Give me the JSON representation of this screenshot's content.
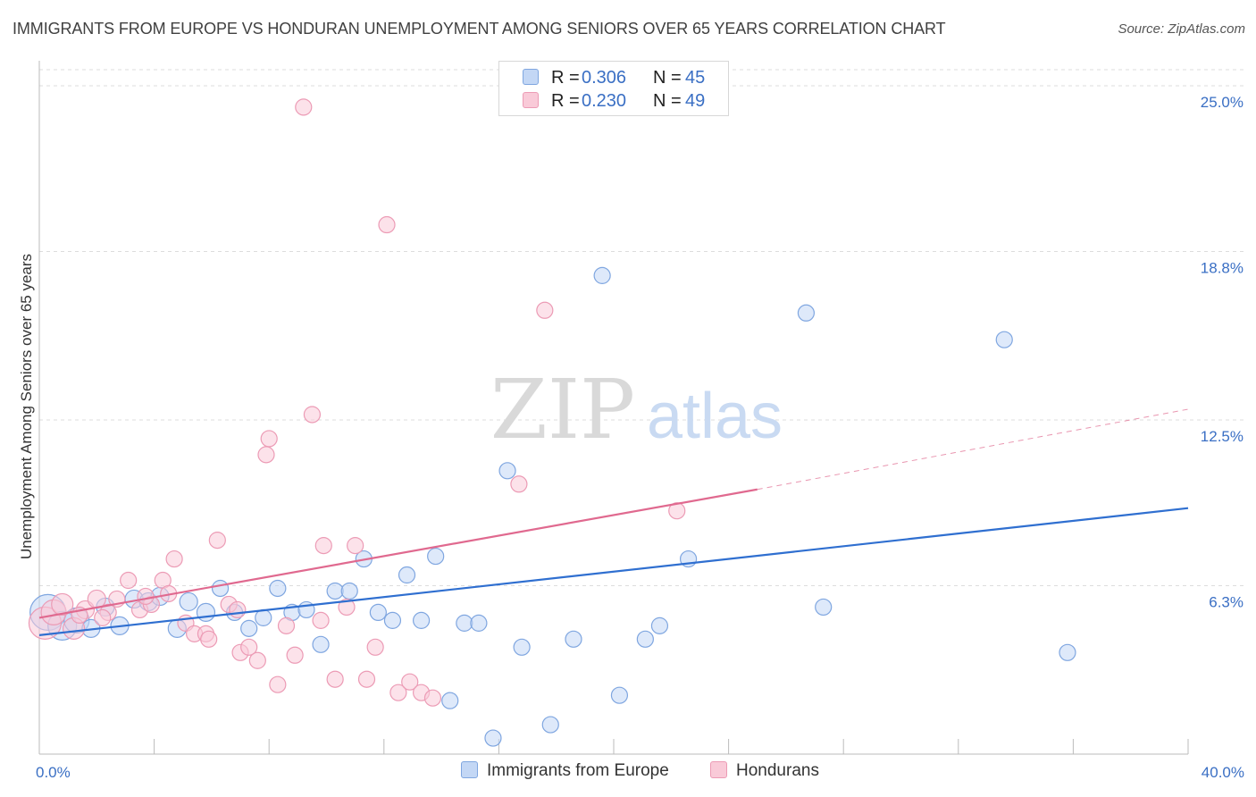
{
  "header": {
    "title": "IMMIGRANTS FROM EUROPE VS HONDURAN UNEMPLOYMENT AMONG SENIORS OVER 65 YEARS CORRELATION CHART",
    "source": "Source: ZipAtlas.com"
  },
  "watermark": {
    "zip": "ZIP",
    "atlas": "atlas"
  },
  "legend": {
    "blue": {
      "r_label": "R =",
      "r_value": "0.306",
      "n_label": "N =",
      "n_value": "45"
    },
    "pink": {
      "r_label": "R =",
      "r_value": "0.230",
      "n_label": "N =",
      "n_value": "49"
    }
  },
  "bottom_legend": {
    "blue_label": "Immigrants from Europe",
    "pink_label": "Hondurans"
  },
  "colors": {
    "blue_fill": "#c3d7f5",
    "blue_stroke": "#7fa6e0",
    "blue_line": "#2f6fd0",
    "pink_fill": "#f9cad8",
    "pink_stroke": "#ec9bb5",
    "pink_line": "#e0698f",
    "axis_text": "#3a6fc4",
    "grid": "#dddddd"
  },
  "chart_data": {
    "type": "scatter",
    "title": "IMMIGRANTS FROM EUROPE VS HONDURAN UNEMPLOYMENT AMONG SENIORS OVER 65 YEARS CORRELATION CHART",
    "xlabel": "",
    "ylabel": "Unemployment Among Seniors over 65 years",
    "xlim": [
      0,
      40
    ],
    "ylim": [
      0,
      25.8
    ],
    "x_tick_labels": [
      {
        "value": 0,
        "label": "0.0%"
      },
      {
        "value": 40,
        "label": "40.0%"
      }
    ],
    "y_tick_labels": [
      {
        "value": 6.3,
        "label": "6.3%"
      },
      {
        "value": 12.5,
        "label": "12.5%"
      },
      {
        "value": 18.8,
        "label": "18.8%"
      },
      {
        "value": 25.0,
        "label": "25.0%"
      }
    ],
    "x_minor_ticks": [
      0,
      4,
      8,
      12,
      16,
      20,
      24,
      28,
      32,
      36,
      40
    ],
    "grid": true,
    "series": [
      {
        "name": "Immigrants from Europe",
        "color": "blue",
        "R": 0.306,
        "N": 45,
        "trend": {
          "x0": 0,
          "y0": 4.45,
          "x1": 40,
          "y1": 9.2,
          "dashed_from": null
        },
        "points": [
          [
            0.3,
            5.3,
            20
          ],
          [
            0.8,
            4.8,
            16
          ],
          [
            1.3,
            5.0,
            14
          ],
          [
            2.8,
            4.8,
            10
          ],
          [
            2.3,
            5.5,
            10
          ],
          [
            3.3,
            5.8,
            10
          ],
          [
            3.8,
            5.7,
            10
          ],
          [
            4.2,
            5.9,
            10
          ],
          [
            4.8,
            4.7,
            10
          ],
          [
            5.2,
            5.7,
            10
          ],
          [
            5.8,
            5.3,
            10
          ],
          [
            6.3,
            6.2,
            9
          ],
          [
            6.8,
            5.3,
            9
          ],
          [
            7.3,
            4.7,
            9
          ],
          [
            7.8,
            5.1,
            9
          ],
          [
            8.3,
            6.2,
            9
          ],
          [
            8.8,
            5.3,
            9
          ],
          [
            9.3,
            5.4,
            9
          ],
          [
            9.8,
            4.1,
            9
          ],
          [
            10.3,
            6.1,
            9
          ],
          [
            10.8,
            6.1,
            9
          ],
          [
            11.3,
            7.3,
            9
          ],
          [
            11.8,
            5.3,
            9
          ],
          [
            12.3,
            5.0,
            9
          ],
          [
            12.8,
            6.7,
            9
          ],
          [
            13.3,
            5.0,
            9
          ],
          [
            13.8,
            7.4,
            9
          ],
          [
            14.3,
            2.0,
            9
          ],
          [
            14.8,
            4.9,
            9
          ],
          [
            15.3,
            4.9,
            9
          ],
          [
            15.8,
            0.6,
            9
          ],
          [
            16.3,
            10.6,
            9
          ],
          [
            16.8,
            4.0,
            9
          ],
          [
            17.8,
            1.1,
            9
          ],
          [
            18.6,
            4.3,
            9
          ],
          [
            19.6,
            17.9,
            9
          ],
          [
            20.2,
            2.2,
            9
          ],
          [
            21.1,
            4.3,
            9
          ],
          [
            21.6,
            4.8,
            9
          ],
          [
            22.6,
            7.3,
            9
          ],
          [
            26.7,
            16.5,
            9
          ],
          [
            27.3,
            5.5,
            9
          ],
          [
            33.6,
            15.5,
            9
          ],
          [
            35.8,
            3.8,
            9
          ],
          [
            1.8,
            4.7,
            10
          ]
        ]
      },
      {
        "name": "Hondurans",
        "color": "pink",
        "R": 0.23,
        "N": 49,
        "trend": {
          "x0": 0,
          "y0": 5.1,
          "x1": 25.0,
          "y1": 9.9,
          "dash_x1": 40,
          "dash_y1": 12.9
        },
        "points": [
          [
            0.2,
            4.9,
            18
          ],
          [
            0.5,
            5.3,
            14
          ],
          [
            0.8,
            5.6,
            12
          ],
          [
            1.2,
            4.7,
            12
          ],
          [
            1.6,
            5.4,
            10
          ],
          [
            2.0,
            5.8,
            10
          ],
          [
            2.4,
            5.3,
            9
          ],
          [
            2.7,
            5.8,
            9
          ],
          [
            3.1,
            6.5,
            9
          ],
          [
            3.5,
            5.4,
            9
          ],
          [
            3.9,
            5.6,
            9
          ],
          [
            4.3,
            6.5,
            9
          ],
          [
            4.7,
            7.3,
            9
          ],
          [
            5.1,
            4.9,
            9
          ],
          [
            5.4,
            4.5,
            9
          ],
          [
            5.8,
            4.5,
            9
          ],
          [
            6.2,
            8.0,
            9
          ],
          [
            6.6,
            5.6,
            9
          ],
          [
            7.0,
            3.8,
            9
          ],
          [
            7.3,
            4.0,
            9
          ],
          [
            7.6,
            3.5,
            9
          ],
          [
            7.9,
            11.2,
            9
          ],
          [
            8.3,
            2.6,
            9
          ],
          [
            8.6,
            4.8,
            9
          ],
          [
            8.9,
            3.7,
            9
          ],
          [
            9.2,
            24.2,
            9
          ],
          [
            9.5,
            12.7,
            9
          ],
          [
            9.9,
            7.8,
            9
          ],
          [
            10.3,
            2.8,
            9
          ],
          [
            10.7,
            5.5,
            9
          ],
          [
            11.0,
            7.8,
            9
          ],
          [
            11.4,
            2.8,
            9
          ],
          [
            11.7,
            4.0,
            9
          ],
          [
            12.1,
            19.8,
            9
          ],
          [
            12.5,
            2.3,
            9
          ],
          [
            12.9,
            2.7,
            9
          ],
          [
            13.3,
            2.3,
            9
          ],
          [
            13.7,
            2.1,
            9
          ],
          [
            16.7,
            10.1,
            9
          ],
          [
            17.6,
            16.6,
            9
          ],
          [
            22.2,
            9.1,
            9
          ],
          [
            8.0,
            11.8,
            9
          ],
          [
            4.5,
            6.0,
            9
          ],
          [
            5.9,
            4.3,
            9
          ],
          [
            1.4,
            5.2,
            9
          ],
          [
            2.2,
            5.1,
            9
          ],
          [
            3.7,
            5.9,
            9
          ],
          [
            6.9,
            5.4,
            9
          ],
          [
            9.8,
            5.0,
            9
          ]
        ]
      }
    ]
  }
}
